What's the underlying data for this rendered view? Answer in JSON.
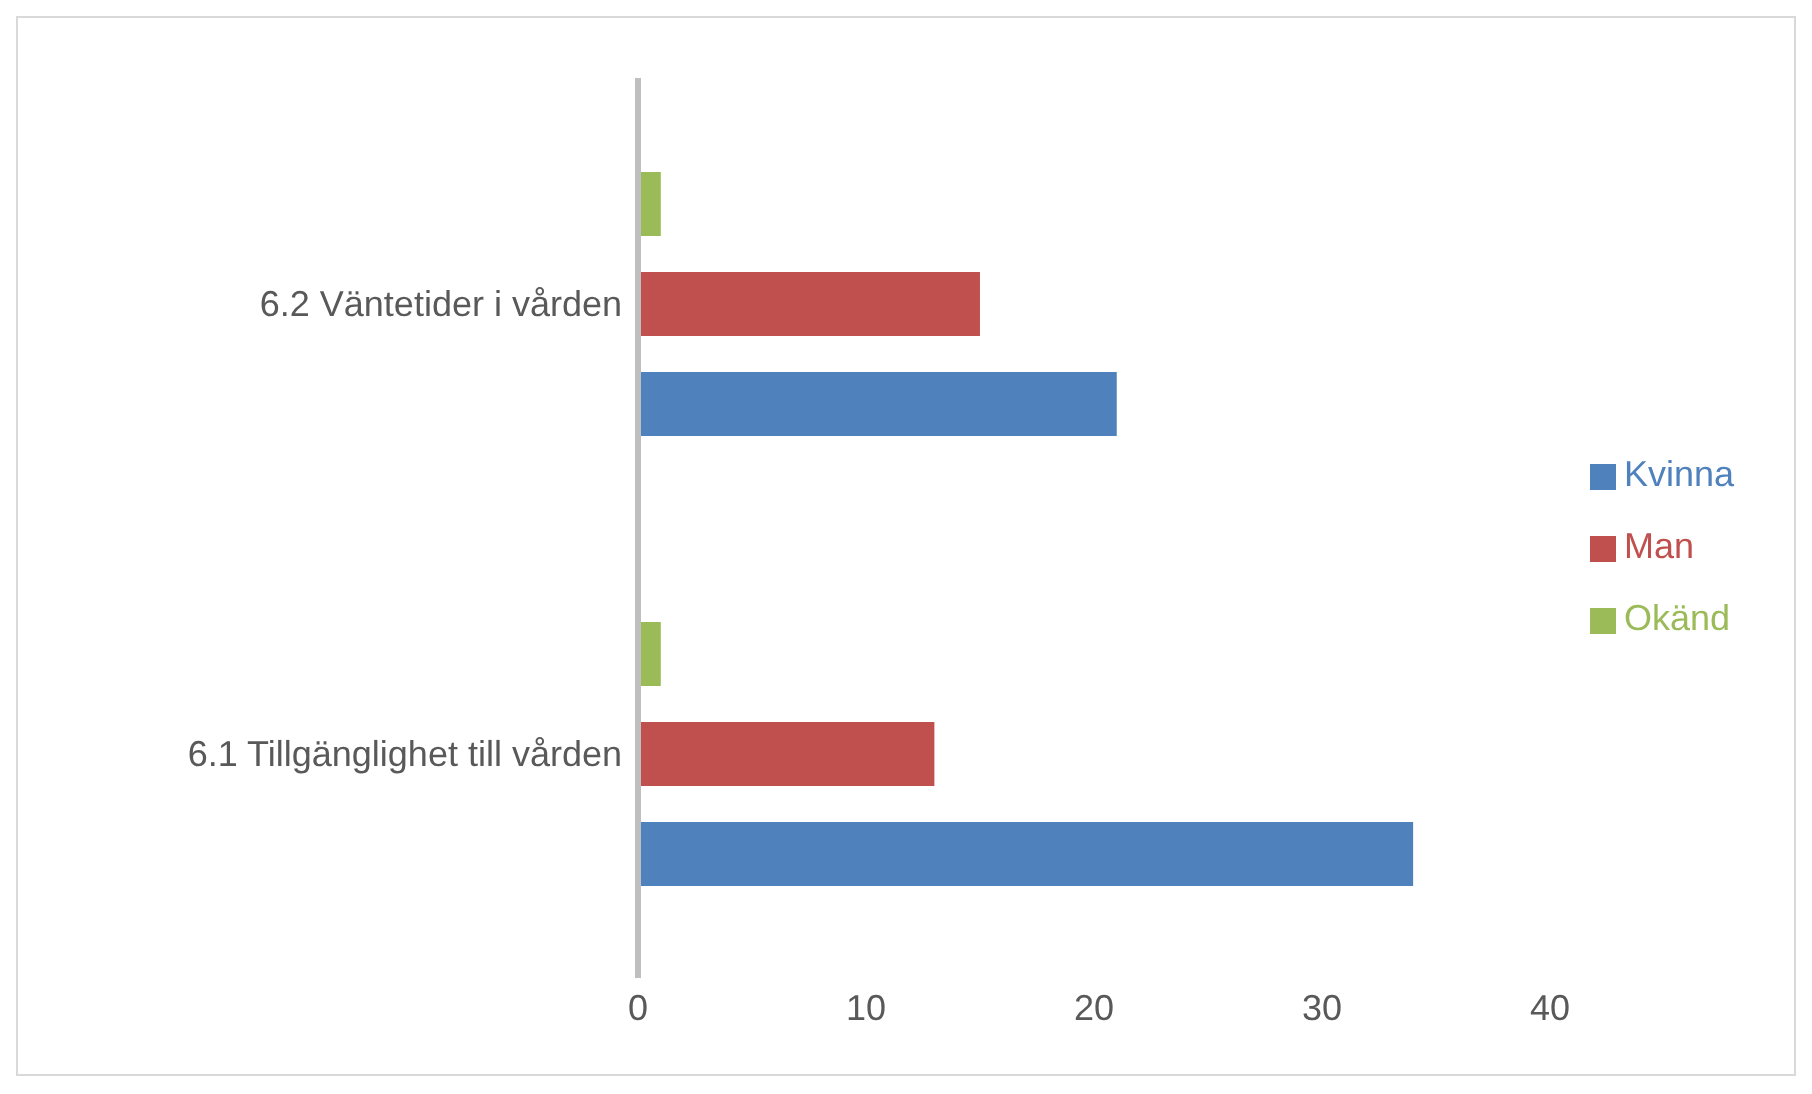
{
  "chart_data": {
    "type": "bar",
    "orientation": "horizontal",
    "categories": [
      "6.2 Väntetider i vården",
      "6.1 Tillgänglighet till vården"
    ],
    "series": [
      {
        "name": "Okänd",
        "color": "#9bbb59",
        "values": [
          1,
          1
        ]
      },
      {
        "name": "Man",
        "color": "#c0504d",
        "values": [
          15,
          13
        ]
      },
      {
        "name": "Kvinna",
        "color": "#4f81bd",
        "values": [
          21,
          34
        ]
      }
    ],
    "xlim": [
      0,
      40
    ],
    "xticks": [
      0,
      10,
      20,
      30,
      40
    ],
    "grid": false,
    "legend": "right"
  }
}
